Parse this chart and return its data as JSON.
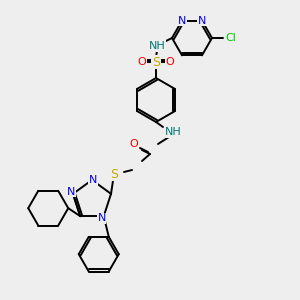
{
  "bg_color": "#eeeeee",
  "atom_colors": {
    "N": "#0000ee",
    "O": "#ee0000",
    "S": "#ccaa00",
    "Cl": "#00cc00",
    "C": "#000000",
    "NH": "#007777"
  },
  "bond_color": "#000000",
  "lw": 1.4
}
